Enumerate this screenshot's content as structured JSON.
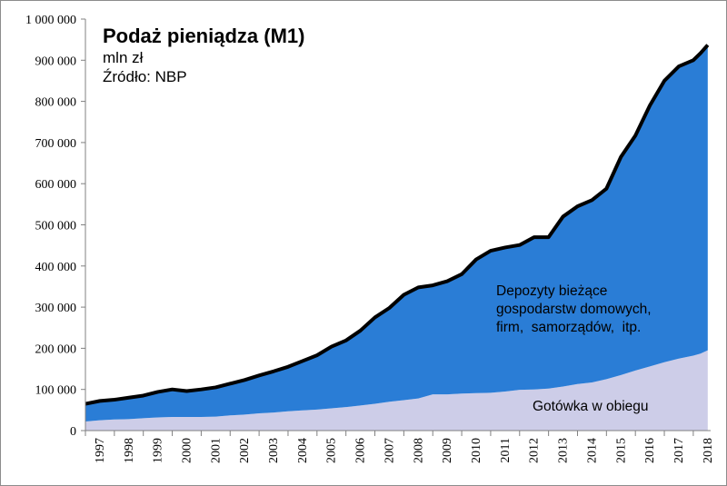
{
  "chart_data": {
    "type": "area",
    "title": "Podaż pieniądza (M1)",
    "subtitle": "mln zł",
    "source": "Źródło: NBP",
    "xlabel": "",
    "ylabel": "",
    "ylim": [
      0,
      1000000
    ],
    "y_ticks": [
      0,
      100000,
      200000,
      300000,
      400000,
      500000,
      600000,
      700000,
      800000,
      900000,
      1000000
    ],
    "y_tick_labels": [
      "0",
      "100 000",
      "200 000",
      "300 000",
      "400 000",
      "500 000",
      "600 000",
      "700 000",
      "800 000",
      "900 000",
      "1 000 000"
    ],
    "x_tick_labels": [
      "1997",
      "1998",
      "1999",
      "2000",
      "2001",
      "2002",
      "2003",
      "2004",
      "2005",
      "2006",
      "2007",
      "2008",
      "2009",
      "2010",
      "2011",
      "2012",
      "2013",
      "2014",
      "2015",
      "2016",
      "2017",
      "2018"
    ],
    "grid": false,
    "legend": "none",
    "annotations": {
      "deposits": [
        "Depozyty bieżące",
        "gospodarstw domowych,",
        "firm,  samorządów,  itp."
      ],
      "cash": "Gotówka w obiegu"
    },
    "colors": {
      "total_line": "#000000",
      "deposits": "#2a7dd6",
      "cash": "#cdcde8"
    },
    "x": [
      1997.0,
      1997.5,
      1998.0,
      1998.5,
      1999.0,
      1999.5,
      2000.0,
      2000.5,
      2001.0,
      2001.5,
      2002.0,
      2002.5,
      2003.0,
      2003.5,
      2004.0,
      2004.5,
      2005.0,
      2005.5,
      2006.0,
      2006.5,
      2007.0,
      2007.5,
      2008.0,
      2008.5,
      2009.0,
      2009.5,
      2010.0,
      2010.5,
      2011.0,
      2011.5,
      2012.0,
      2012.5,
      2013.0,
      2013.5,
      2014.0,
      2014.5,
      2015.0,
      2015.5,
      2016.0,
      2016.5,
      2017.0,
      2017.5,
      2018.0,
      2018.25,
      2018.5
    ],
    "series": [
      {
        "name": "Gotówka w obiegu",
        "values": [
          22000,
          25000,
          27000,
          28000,
          30000,
          32000,
          33000,
          33000,
          33000,
          34000,
          37000,
          39000,
          42000,
          44000,
          47000,
          49000,
          51000,
          54000,
          57000,
          61000,
          65000,
          70000,
          74000,
          78000,
          88000,
          88000,
          90000,
          91000,
          92000,
          95000,
          99000,
          100000,
          102000,
          107000,
          113000,
          117000,
          125000,
          135000,
          146000,
          156000,
          166000,
          175000,
          182000,
          187000,
          195000
        ]
      },
      {
        "name": "Depozyty bieżące gospodarstw domowych, firm, samorządów, itp.",
        "values": [
          43000,
          47000,
          48000,
          52000,
          55000,
          62000,
          67000,
          63000,
          67000,
          71000,
          77000,
          84000,
          92000,
          100000,
          108000,
          120000,
          132000,
          150000,
          162000,
          182000,
          210000,
          228000,
          256000,
          270000,
          265000,
          275000,
          290000,
          325000,
          345000,
          350000,
          352000,
          370000,
          368000,
          413000,
          432000,
          443000,
          463000,
          530000,
          571000,
          634000,
          684000,
          710000,
          718000,
          730000,
          742000
        ]
      }
    ],
    "total": [
      65000,
      72000,
      75000,
      80000,
      85000,
      94000,
      100000,
      96000,
      100000,
      105000,
      114000,
      123000,
      134000,
      144000,
      155000,
      169000,
      183000,
      204000,
      219000,
      243000,
      275000,
      298000,
      330000,
      348000,
      353000,
      363000,
      380000,
      416000,
      437000,
      445000,
      451000,
      470000,
      470000,
      520000,
      545000,
      560000,
      588000,
      665000,
      717000,
      790000,
      850000,
      885000,
      900000,
      917000,
      937000
    ]
  }
}
